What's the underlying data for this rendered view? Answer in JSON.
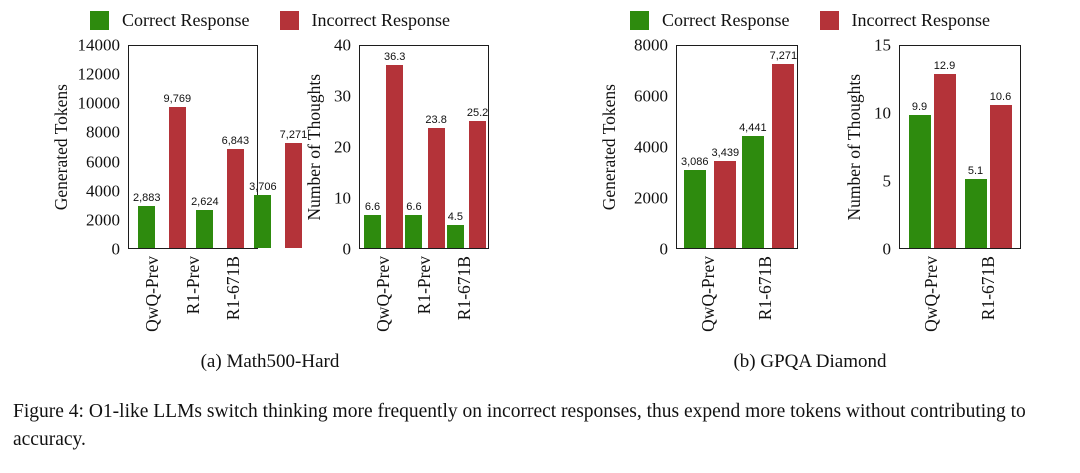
{
  "colors": {
    "correct": "#2e8b0e",
    "incorrect": "#b43339"
  },
  "legend": {
    "correct_label": "Correct Response",
    "incorrect_label": "Incorrect Response"
  },
  "panels": [
    {
      "caption": "(a) Math500-Hard"
    },
    {
      "caption": "(b) GPQA Diamond"
    }
  ],
  "figure": {
    "caption": "Figure 4: O1-like LLMs switch thinking more frequently on incorrect responses, thus expend more tokens without contributing to accuracy."
  },
  "chart_data": [
    {
      "type": "bar",
      "panel": "Math500-Hard",
      "ylabel": "Generated Tokens",
      "xlabel": "",
      "ylim": [
        0,
        14000
      ],
      "yticks": [
        "0",
        "2000",
        "4000",
        "6000",
        "8000",
        "10000",
        "12000",
        "14000"
      ],
      "categories": [
        "QwQ-Prev",
        "R1-Prev",
        "R1-671B"
      ],
      "series": [
        {
          "name": "Correct Response",
          "values": [
            2883,
            2624,
            3706
          ],
          "labels": [
            "2,883",
            "2,624",
            "3,706"
          ]
        },
        {
          "name": "Incorrect Response",
          "values": [
            9769,
            6843,
            7271
          ],
          "labels": [
            "9,769",
            "6,843",
            "7,271"
          ]
        }
      ],
      "grid": false,
      "legend_position": "top"
    },
    {
      "type": "bar",
      "panel": "Math500-Hard",
      "ylabel": "Number of Thoughts",
      "xlabel": "",
      "ylim": [
        0,
        40
      ],
      "yticks": [
        "0",
        "10",
        "20",
        "30",
        "40"
      ],
      "categories": [
        "QwQ-Prev",
        "R1-Prev",
        "R1-671B"
      ],
      "series": [
        {
          "name": "Correct Response",
          "values": [
            6.6,
            6.6,
            4.5
          ],
          "labels": [
            "6.6",
            "6.6",
            "4.5"
          ]
        },
        {
          "name": "Incorrect Response",
          "values": [
            36.3,
            23.8,
            25.2
          ],
          "labels": [
            "36.3",
            "23.8",
            "25.2"
          ]
        }
      ],
      "grid": false,
      "legend_position": "top"
    },
    {
      "type": "bar",
      "panel": "GPQA Diamond",
      "ylabel": "Generated Tokens",
      "xlabel": "",
      "ylim": [
        0,
        8000
      ],
      "yticks": [
        "0",
        "2000",
        "4000",
        "6000",
        "8000"
      ],
      "categories": [
        "QwQ-Prev",
        "R1-671B"
      ],
      "series": [
        {
          "name": "Correct Response",
          "values": [
            3086,
            4441
          ],
          "labels": [
            "3,086",
            "4,441"
          ]
        },
        {
          "name": "Incorrect Response",
          "values": [
            3439,
            7271
          ],
          "labels": [
            "3,439",
            "7,271"
          ]
        }
      ],
      "grid": false,
      "legend_position": "top"
    },
    {
      "type": "bar",
      "panel": "GPQA Diamond",
      "ylabel": "Number of Thoughts",
      "xlabel": "",
      "ylim": [
        0,
        15
      ],
      "yticks": [
        "0",
        "5",
        "10",
        "15"
      ],
      "categories": [
        "QwQ-Prev",
        "R1-671B"
      ],
      "series": [
        {
          "name": "Correct Response",
          "values": [
            9.9,
            5.1
          ],
          "labels": [
            "9.9",
            "5.1"
          ]
        },
        {
          "name": "Incorrect Response",
          "values": [
            12.9,
            10.6
          ],
          "labels": [
            "12.9",
            "10.6"
          ]
        }
      ],
      "grid": false,
      "legend_position": "top"
    }
  ]
}
